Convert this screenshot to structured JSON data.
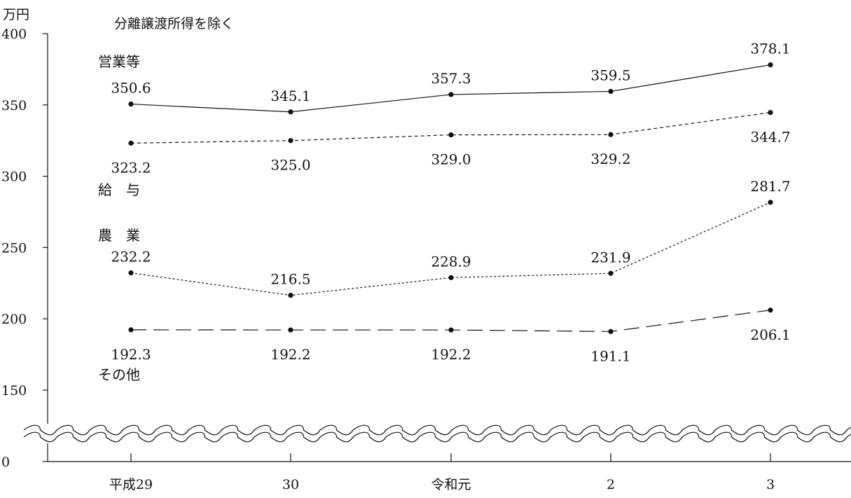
{
  "chart_data": {
    "type": "line",
    "title": "分離譲渡所得を除く",
    "ylabel": "万円",
    "xlabel": "",
    "ylim": [
      150,
      400
    ],
    "y_break": true,
    "yticks": [
      "0",
      "150",
      "200",
      "250",
      "300",
      "350",
      "400"
    ],
    "categories": [
      "平成29",
      "30",
      "令和元",
      "2",
      "3"
    ],
    "series": [
      {
        "name": "営業等",
        "style": "solid",
        "values": [
          350.6,
          345.1,
          357.3,
          359.5,
          378.1
        ],
        "labels": [
          "350.6",
          "345.1",
          "357.3",
          "359.5",
          "378.1"
        ]
      },
      {
        "name": "給　与",
        "style": "dashed-short",
        "values": [
          323.2,
          325.0,
          329.0,
          329.2,
          344.7
        ],
        "labels": [
          "323.2",
          "325.0",
          "329.0",
          "329.2",
          "344.7"
        ]
      },
      {
        "name": "農　業",
        "style": "dotted",
        "values": [
          232.2,
          216.5,
          228.9,
          231.9,
          281.7
        ],
        "labels": [
          "232.2",
          "216.5",
          "228.9",
          "231.9",
          "281.7"
        ]
      },
      {
        "name": "その他",
        "style": "dashed-long",
        "values": [
          192.3,
          192.2,
          192.2,
          191.1,
          206.1
        ],
        "labels": [
          "192.3",
          "192.2",
          "192.2",
          "191.1",
          "206.1"
        ]
      }
    ],
    "grid": false,
    "legend": "inline-left",
    "colors": {
      "line": "#111111",
      "background": "#ffffff"
    }
  }
}
